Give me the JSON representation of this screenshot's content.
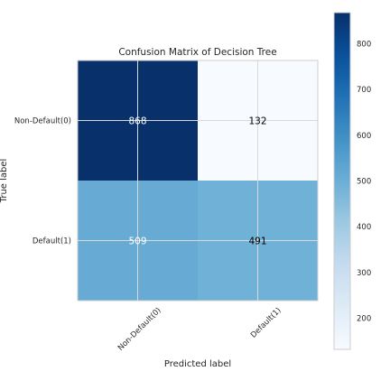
{
  "chart_data": {
    "type": "heatmap",
    "title": "Confusion Matrix of Decision Tree",
    "xlabel": "Predicted label",
    "ylabel": "True label",
    "x_categories": [
      "Non-Default(0)",
      "Default(1)"
    ],
    "y_categories": [
      "Non-Default(0)",
      "Default(1)"
    ],
    "values": [
      [
        868,
        132
      ],
      [
        509,
        491
      ]
    ],
    "colormap": "Blues",
    "color_range": [
      132,
      868
    ],
    "colorbar_ticks": [
      200,
      300,
      400,
      500,
      600,
      700,
      800
    ],
    "grid": true
  }
}
